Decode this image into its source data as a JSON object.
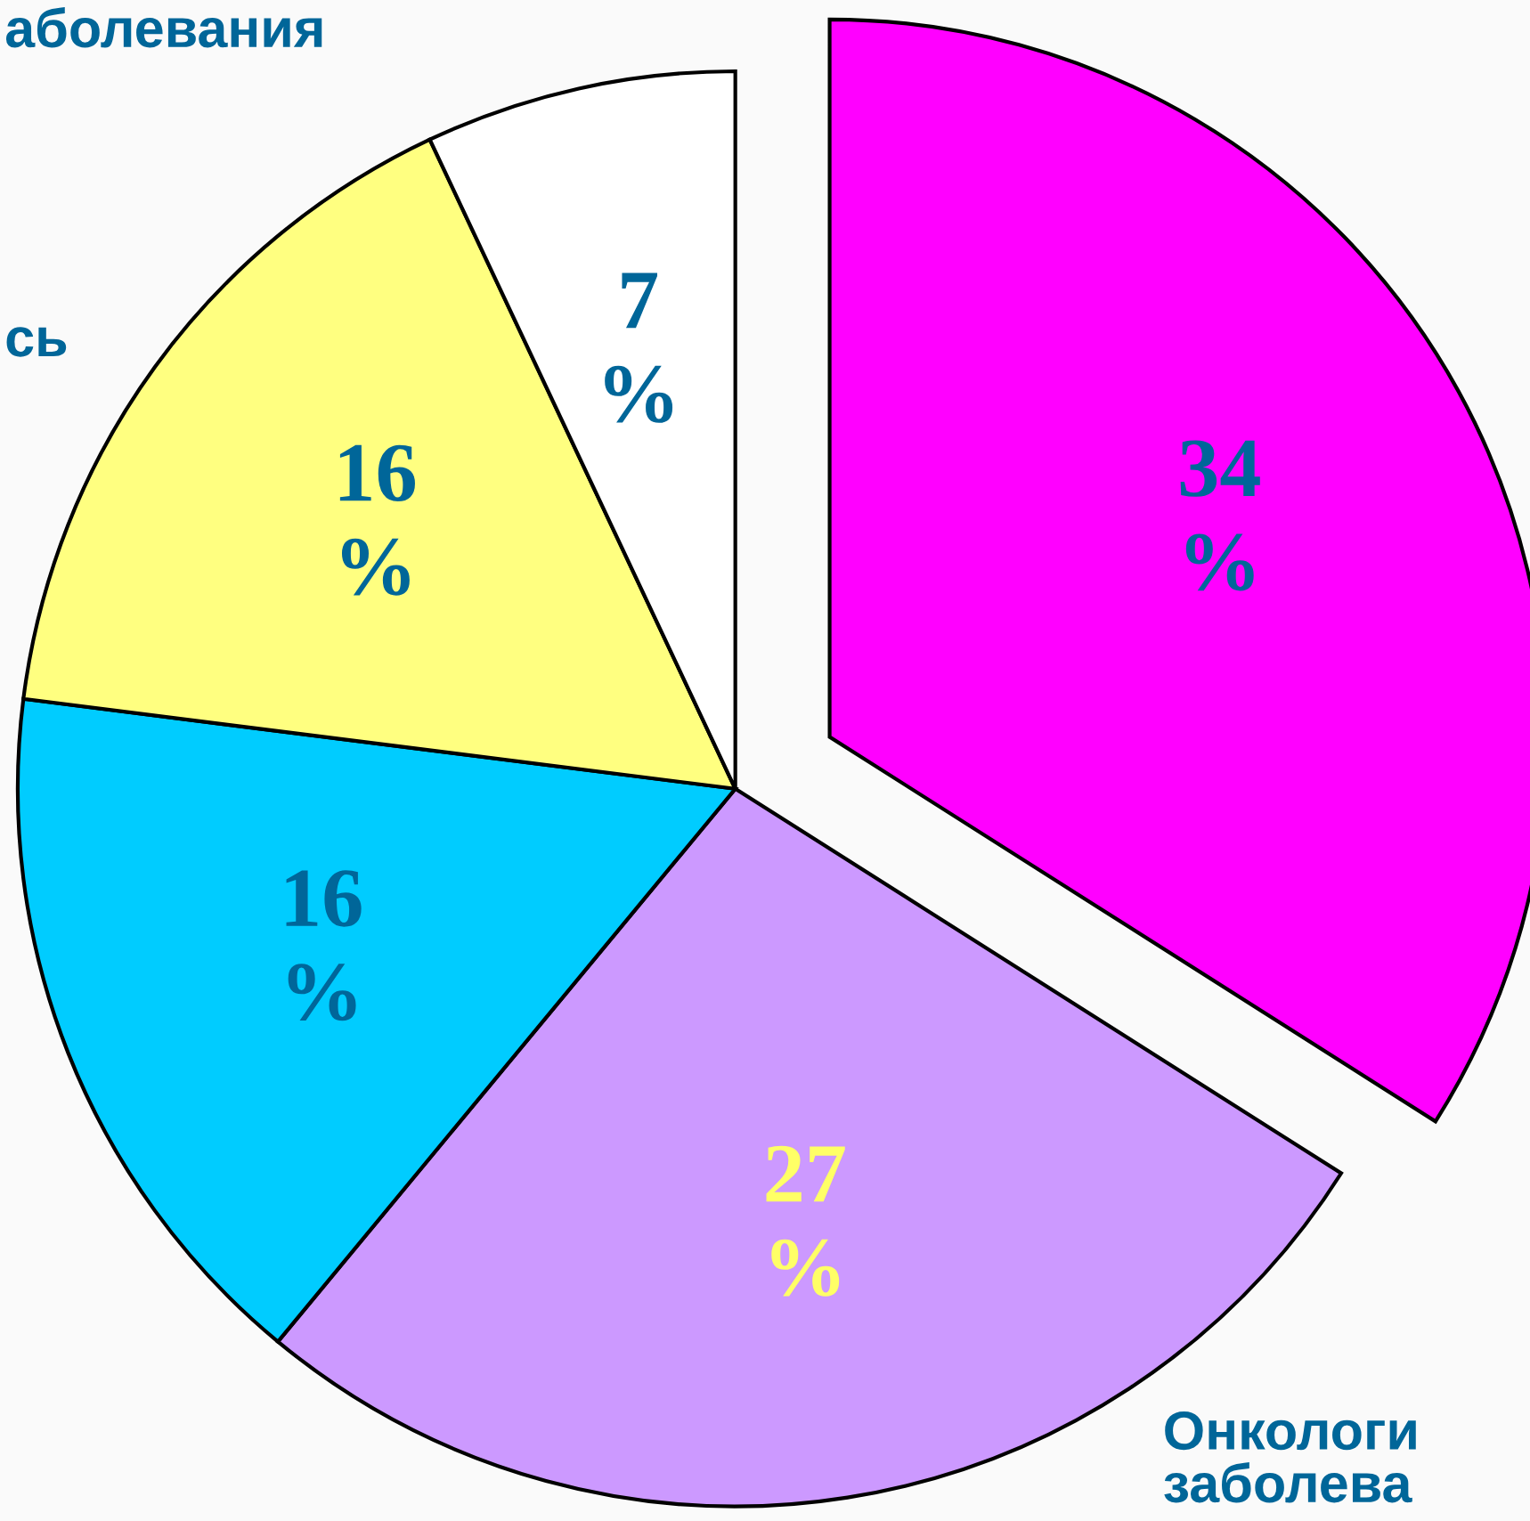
{
  "chart_data": {
    "type": "pie",
    "categories": [
      null,
      null,
      null,
      null,
      null
    ],
    "values": [
      34,
      27,
      16,
      16,
      7
    ],
    "colors": [
      "#ff00ff",
      "#cc99ff",
      "#00ccff",
      "#ffff80",
      "#ffffff"
    ],
    "value_labels": [
      "34\n%",
      "27\n%",
      "16\n%",
      "16\n%",
      "7\n%"
    ],
    "annotations": [
      "аболевания",
      "сь",
      "Онкологи\nзаболева"
    ]
  }
}
